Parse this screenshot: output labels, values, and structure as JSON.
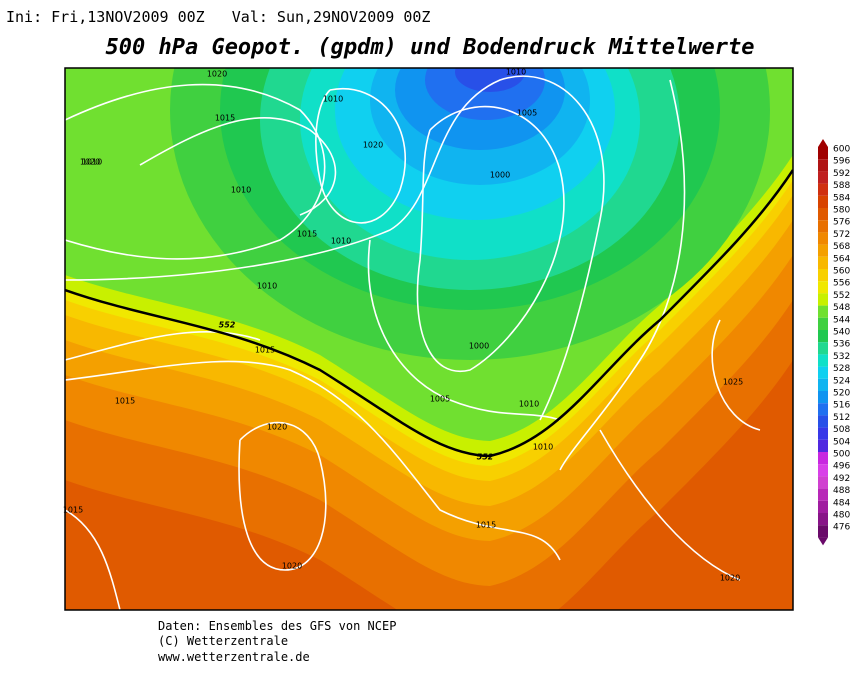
{
  "header": {
    "run": "Ini: Fri,13NOV2009 00Z   Val: Sun,29NOV2009 00Z",
    "title": "500 hPa Geopot. (gpdm) und Bodendruck Mittelwerte"
  },
  "contour_labels": [
    "1020",
    "1015",
    "1020",
    "1010",
    "1010",
    "1020",
    "1015",
    "1010",
    "1005",
    "1000",
    "1010",
    "1010",
    "552",
    "1015",
    "1015",
    "1000",
    "1005",
    "1010",
    "1010",
    "552",
    "1020",
    "1025",
    "1015",
    "1015",
    "1020",
    "1020",
    "1010"
  ],
  "colorbar": {
    "levels": [
      600,
      596,
      592,
      588,
      584,
      580,
      576,
      572,
      568,
      564,
      560,
      556,
      552,
      548,
      544,
      540,
      536,
      532,
      528,
      524,
      520,
      516,
      512,
      508,
      504,
      500,
      496,
      492,
      488,
      484,
      480,
      476
    ],
    "colors": [
      "#a00000",
      "#b01414",
      "#c02020",
      "#d03010",
      "#d84400",
      "#e05a00",
      "#e87000",
      "#f08800",
      "#f4a000",
      "#f8b800",
      "#f8d000",
      "#f0e800",
      "#c8f000",
      "#70e030",
      "#40d040",
      "#20c850",
      "#20d890",
      "#10e0c8",
      "#10d0f0",
      "#10b4f0",
      "#1094f0",
      "#2070f0",
      "#2850e8",
      "#3838e8",
      "#5028e0",
      "#c828e0",
      "#d840e8",
      "#d040d0",
      "#b828b8",
      "#a01ca0",
      "#881488",
      "#6a0a6a"
    ]
  },
  "footer": [
    "Daten: Ensembles des GFS von NCEP",
    "(C) Wetterzentrale",
    "www.wetterzentrale.de"
  ]
}
